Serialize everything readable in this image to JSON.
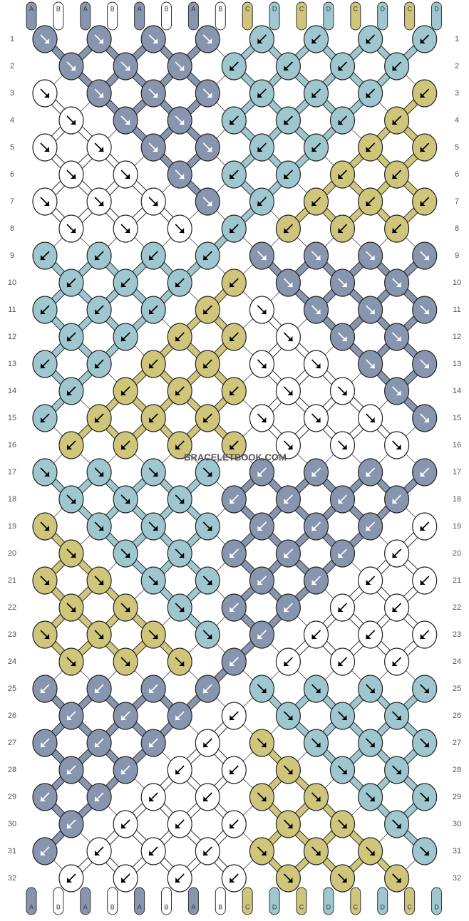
{
  "pattern": {
    "top_strands": [
      "A",
      "B",
      "A",
      "B",
      "A",
      "B",
      "A",
      "B",
      "C",
      "D",
      "C",
      "D",
      "C",
      "D",
      "C",
      "D"
    ],
    "bottom_strands": [
      "A",
      "B",
      "A",
      "B",
      "A",
      "B",
      "A",
      "B",
      "C",
      "D",
      "C",
      "D",
      "C",
      "D",
      "C",
      "D"
    ],
    "colors": {
      "A": "#8796ae",
      "B": "#ffffff",
      "C": "#cfc57b",
      "D": "#9fc7cf"
    },
    "row_numbers": [
      1,
      2,
      3,
      4,
      5,
      6,
      7,
      8,
      9,
      10,
      11,
      12,
      13,
      14,
      15,
      16,
      17,
      18,
      19,
      20,
      21,
      22,
      23,
      24,
      25,
      26,
      27,
      28,
      29,
      30,
      31,
      32
    ],
    "watermark": "BRACELETBOOK.COM",
    "knots": [
      [
        [
          "A",
          "se"
        ],
        [
          "A",
          "se"
        ],
        [
          "A",
          "se"
        ],
        [
          "A",
          "se"
        ],
        [
          "D",
          "sw"
        ],
        [
          "D",
          "sw"
        ],
        [
          "D",
          "sw"
        ],
        [
          "D",
          "sw"
        ]
      ],
      [
        [
          "A",
          "se"
        ],
        [
          "A",
          "se"
        ],
        [
          "A",
          "se"
        ],
        [
          "D",
          "sw"
        ],
        [
          "D",
          "sw"
        ],
        [
          "D",
          "sw"
        ],
        [
          "D",
          "sw"
        ]
      ],
      [
        [
          "B",
          "se"
        ],
        [
          "A",
          "se"
        ],
        [
          "A",
          "se"
        ],
        [
          "A",
          "se"
        ],
        [
          "D",
          "sw"
        ],
        [
          "D",
          "sw"
        ],
        [
          "D",
          "sw"
        ],
        [
          "C",
          "sw"
        ]
      ],
      [
        [
          "B",
          "se"
        ],
        [
          "A",
          "se"
        ],
        [
          "A",
          "se"
        ],
        [
          "D",
          "sw"
        ],
        [
          "D",
          "sw"
        ],
        [
          "D",
          "sw"
        ],
        [
          "C",
          "sw"
        ]
      ],
      [
        [
          "B",
          "se"
        ],
        [
          "B",
          "se"
        ],
        [
          "A",
          "se"
        ],
        [
          "A",
          "se"
        ],
        [
          "D",
          "sw"
        ],
        [
          "D",
          "sw"
        ],
        [
          "C",
          "sw"
        ],
        [
          "C",
          "sw"
        ]
      ],
      [
        [
          "B",
          "se"
        ],
        [
          "B",
          "se"
        ],
        [
          "A",
          "se"
        ],
        [
          "D",
          "sw"
        ],
        [
          "D",
          "sw"
        ],
        [
          "C",
          "sw"
        ],
        [
          "C",
          "sw"
        ]
      ],
      [
        [
          "B",
          "se"
        ],
        [
          "B",
          "se"
        ],
        [
          "B",
          "se"
        ],
        [
          "A",
          "se"
        ],
        [
          "D",
          "sw"
        ],
        [
          "C",
          "sw"
        ],
        [
          "C",
          "sw"
        ],
        [
          "C",
          "sw"
        ]
      ],
      [
        [
          "B",
          "se"
        ],
        [
          "B",
          "se"
        ],
        [
          "B",
          "se"
        ],
        [
          "D",
          "sw"
        ],
        [
          "C",
          "sw"
        ],
        [
          "C",
          "sw"
        ],
        [
          "C",
          "sw"
        ]
      ],
      [
        [
          "D",
          "sw"
        ],
        [
          "D",
          "sw"
        ],
        [
          "D",
          "sw"
        ],
        [
          "D",
          "sw"
        ],
        [
          "A",
          "se"
        ],
        [
          "A",
          "se"
        ],
        [
          "A",
          "se"
        ],
        [
          "A",
          "se"
        ]
      ],
      [
        [
          "D",
          "sw"
        ],
        [
          "D",
          "sw"
        ],
        [
          "D",
          "sw"
        ],
        [
          "C",
          "sw"
        ],
        [
          "A",
          "se"
        ],
        [
          "A",
          "se"
        ],
        [
          "A",
          "se"
        ]
      ],
      [
        [
          "D",
          "sw"
        ],
        [
          "D",
          "sw"
        ],
        [
          "D",
          "sw"
        ],
        [
          "C",
          "sw"
        ],
        [
          "B",
          "se"
        ],
        [
          "A",
          "se"
        ],
        [
          "A",
          "se"
        ],
        [
          "A",
          "se"
        ]
      ],
      [
        [
          "D",
          "sw"
        ],
        [
          "D",
          "sw"
        ],
        [
          "C",
          "sw"
        ],
        [
          "C",
          "sw"
        ],
        [
          "B",
          "se"
        ],
        [
          "A",
          "se"
        ],
        [
          "A",
          "se"
        ]
      ],
      [
        [
          "D",
          "sw"
        ],
        [
          "D",
          "sw"
        ],
        [
          "C",
          "sw"
        ],
        [
          "C",
          "sw"
        ],
        [
          "B",
          "se"
        ],
        [
          "B",
          "se"
        ],
        [
          "A",
          "se"
        ],
        [
          "A",
          "se"
        ]
      ],
      [
        [
          "D",
          "sw"
        ],
        [
          "C",
          "sw"
        ],
        [
          "C",
          "sw"
        ],
        [
          "C",
          "sw"
        ],
        [
          "B",
          "se"
        ],
        [
          "B",
          "se"
        ],
        [
          "A",
          "se"
        ]
      ],
      [
        [
          "D",
          "sw"
        ],
        [
          "C",
          "sw"
        ],
        [
          "C",
          "sw"
        ],
        [
          "C",
          "sw"
        ],
        [
          "B",
          "se"
        ],
        [
          "B",
          "se"
        ],
        [
          "B",
          "se"
        ],
        [
          "A",
          "se"
        ]
      ],
      [
        [
          "C",
          "sw"
        ],
        [
          "C",
          "sw"
        ],
        [
          "C",
          "sw"
        ],
        [
          "C",
          "sw"
        ],
        [
          "B",
          "se"
        ],
        [
          "B",
          "se"
        ],
        [
          "B",
          "se"
        ]
      ],
      [
        [
          "D",
          "se"
        ],
        [
          "D",
          "se"
        ],
        [
          "D",
          "se"
        ],
        [
          "D",
          "se"
        ],
        [
          "A",
          "sw"
        ],
        [
          "A",
          "sw"
        ],
        [
          "A",
          "sw"
        ],
        [
          "A",
          "sw"
        ]
      ],
      [
        [
          "D",
          "se"
        ],
        [
          "D",
          "se"
        ],
        [
          "D",
          "se"
        ],
        [
          "A",
          "sw"
        ],
        [
          "A",
          "sw"
        ],
        [
          "A",
          "sw"
        ],
        [
          "A",
          "sw"
        ]
      ],
      [
        [
          "C",
          "se"
        ],
        [
          "D",
          "se"
        ],
        [
          "D",
          "se"
        ],
        [
          "D",
          "se"
        ],
        [
          "A",
          "sw"
        ],
        [
          "A",
          "sw"
        ],
        [
          "A",
          "sw"
        ],
        [
          "B",
          "sw"
        ]
      ],
      [
        [
          "C",
          "se"
        ],
        [
          "D",
          "se"
        ],
        [
          "D",
          "se"
        ],
        [
          "A",
          "sw"
        ],
        [
          "A",
          "sw"
        ],
        [
          "A",
          "sw"
        ],
        [
          "B",
          "sw"
        ]
      ],
      [
        [
          "C",
          "se"
        ],
        [
          "C",
          "se"
        ],
        [
          "D",
          "se"
        ],
        [
          "D",
          "se"
        ],
        [
          "A",
          "sw"
        ],
        [
          "A",
          "sw"
        ],
        [
          "B",
          "sw"
        ],
        [
          "B",
          "sw"
        ]
      ],
      [
        [
          "C",
          "se"
        ],
        [
          "C",
          "se"
        ],
        [
          "D",
          "se"
        ],
        [
          "A",
          "sw"
        ],
        [
          "A",
          "sw"
        ],
        [
          "B",
          "sw"
        ],
        [
          "B",
          "sw"
        ]
      ],
      [
        [
          "C",
          "se"
        ],
        [
          "C",
          "se"
        ],
        [
          "C",
          "se"
        ],
        [
          "D",
          "se"
        ],
        [
          "A",
          "sw"
        ],
        [
          "B",
          "sw"
        ],
        [
          "B",
          "sw"
        ],
        [
          "B",
          "sw"
        ]
      ],
      [
        [
          "C",
          "se"
        ],
        [
          "C",
          "se"
        ],
        [
          "C",
          "se"
        ],
        [
          "A",
          "sw"
        ],
        [
          "B",
          "sw"
        ],
        [
          "B",
          "sw"
        ],
        [
          "B",
          "sw"
        ]
      ],
      [
        [
          "A",
          "sw"
        ],
        [
          "A",
          "sw"
        ],
        [
          "A",
          "sw"
        ],
        [
          "A",
          "sw"
        ],
        [
          "D",
          "se"
        ],
        [
          "D",
          "se"
        ],
        [
          "D",
          "se"
        ],
        [
          "D",
          "se"
        ]
      ],
      [
        [
          "A",
          "sw"
        ],
        [
          "A",
          "sw"
        ],
        [
          "A",
          "sw"
        ],
        [
          "B",
          "sw"
        ],
        [
          "D",
          "se"
        ],
        [
          "D",
          "se"
        ],
        [
          "D",
          "se"
        ]
      ],
      [
        [
          "A",
          "sw"
        ],
        [
          "A",
          "sw"
        ],
        [
          "A",
          "sw"
        ],
        [
          "B",
          "sw"
        ],
        [
          "C",
          "se"
        ],
        [
          "D",
          "se"
        ],
        [
          "D",
          "se"
        ],
        [
          "D",
          "se"
        ]
      ],
      [
        [
          "A",
          "sw"
        ],
        [
          "A",
          "sw"
        ],
        [
          "B",
          "sw"
        ],
        [
          "B",
          "sw"
        ],
        [
          "C",
          "se"
        ],
        [
          "D",
          "se"
        ],
        [
          "D",
          "se"
        ]
      ],
      [
        [
          "A",
          "sw"
        ],
        [
          "A",
          "sw"
        ],
        [
          "B",
          "sw"
        ],
        [
          "B",
          "sw"
        ],
        [
          "C",
          "se"
        ],
        [
          "C",
          "se"
        ],
        [
          "D",
          "se"
        ],
        [
          "D",
          "se"
        ]
      ],
      [
        [
          "A",
          "sw"
        ],
        [
          "B",
          "sw"
        ],
        [
          "B",
          "sw"
        ],
        [
          "B",
          "sw"
        ],
        [
          "C",
          "se"
        ],
        [
          "C",
          "se"
        ],
        [
          "D",
          "se"
        ]
      ],
      [
        [
          "A",
          "sw"
        ],
        [
          "B",
          "sw"
        ],
        [
          "B",
          "sw"
        ],
        [
          "B",
          "sw"
        ],
        [
          "C",
          "se"
        ],
        [
          "C",
          "se"
        ],
        [
          "C",
          "se"
        ],
        [
          "D",
          "se"
        ]
      ],
      [
        [
          "B",
          "sw"
        ],
        [
          "B",
          "sw"
        ],
        [
          "B",
          "sw"
        ],
        [
          "B",
          "sw"
        ],
        [
          "C",
          "se"
        ],
        [
          "C",
          "se"
        ],
        [
          "C",
          "se"
        ]
      ]
    ]
  }
}
